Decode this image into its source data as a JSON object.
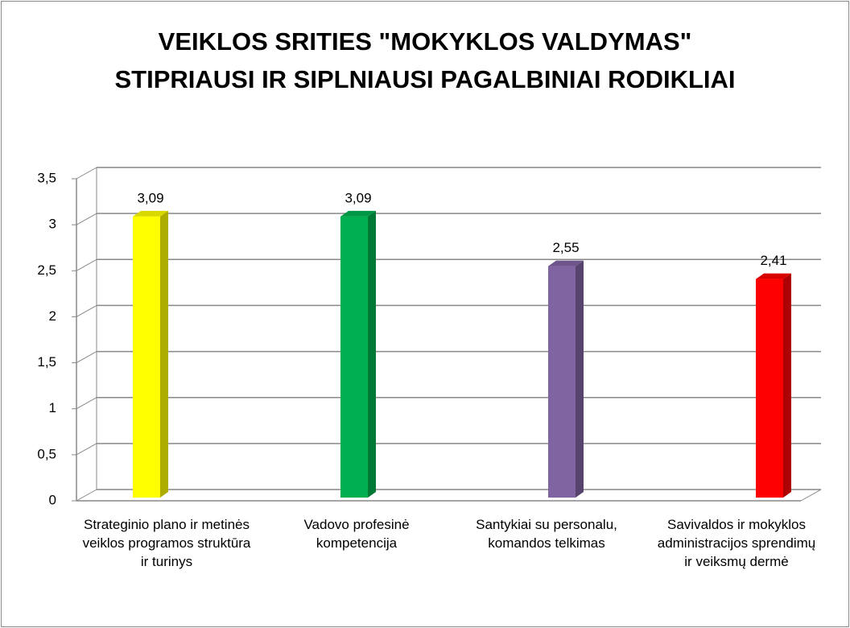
{
  "chart_data": {
    "type": "bar3d",
    "title": "VEIKLOS SRITIES \"MOKYKLOS VALDYMAS\" STIPRIAUSI IR SIPLNIAUSI PAGALBINIAI RODIKLIAI",
    "categories": [
      "Strateginio plano ir metinės veiklos programos struktūra ir turinys",
      "Vadovo profesinė kompetencija",
      "Santykiai su personalu, komandos telkimas",
      "Savivaldos ir mokyklos administracijos sprendimų ir veiksmų dermė"
    ],
    "values": [
      3.09,
      3.09,
      2.55,
      2.41
    ],
    "value_labels": [
      "3,09",
      "3,09",
      "2,55",
      "2,41"
    ],
    "colors": [
      "#ffff00",
      "#00b050",
      "#8064a2",
      "#ff0000"
    ],
    "ylim": [
      0,
      3.5
    ],
    "yticks": [
      0,
      {
        "value": 0.5,
        "label": "0,5"
      },
      1,
      {
        "value": 1.5,
        "label": "1,5"
      },
      2,
      {
        "value": 2.5,
        "label": "2,5"
      },
      3,
      {
        "value": 3.5,
        "label": "3,5"
      }
    ],
    "grid": true
  }
}
